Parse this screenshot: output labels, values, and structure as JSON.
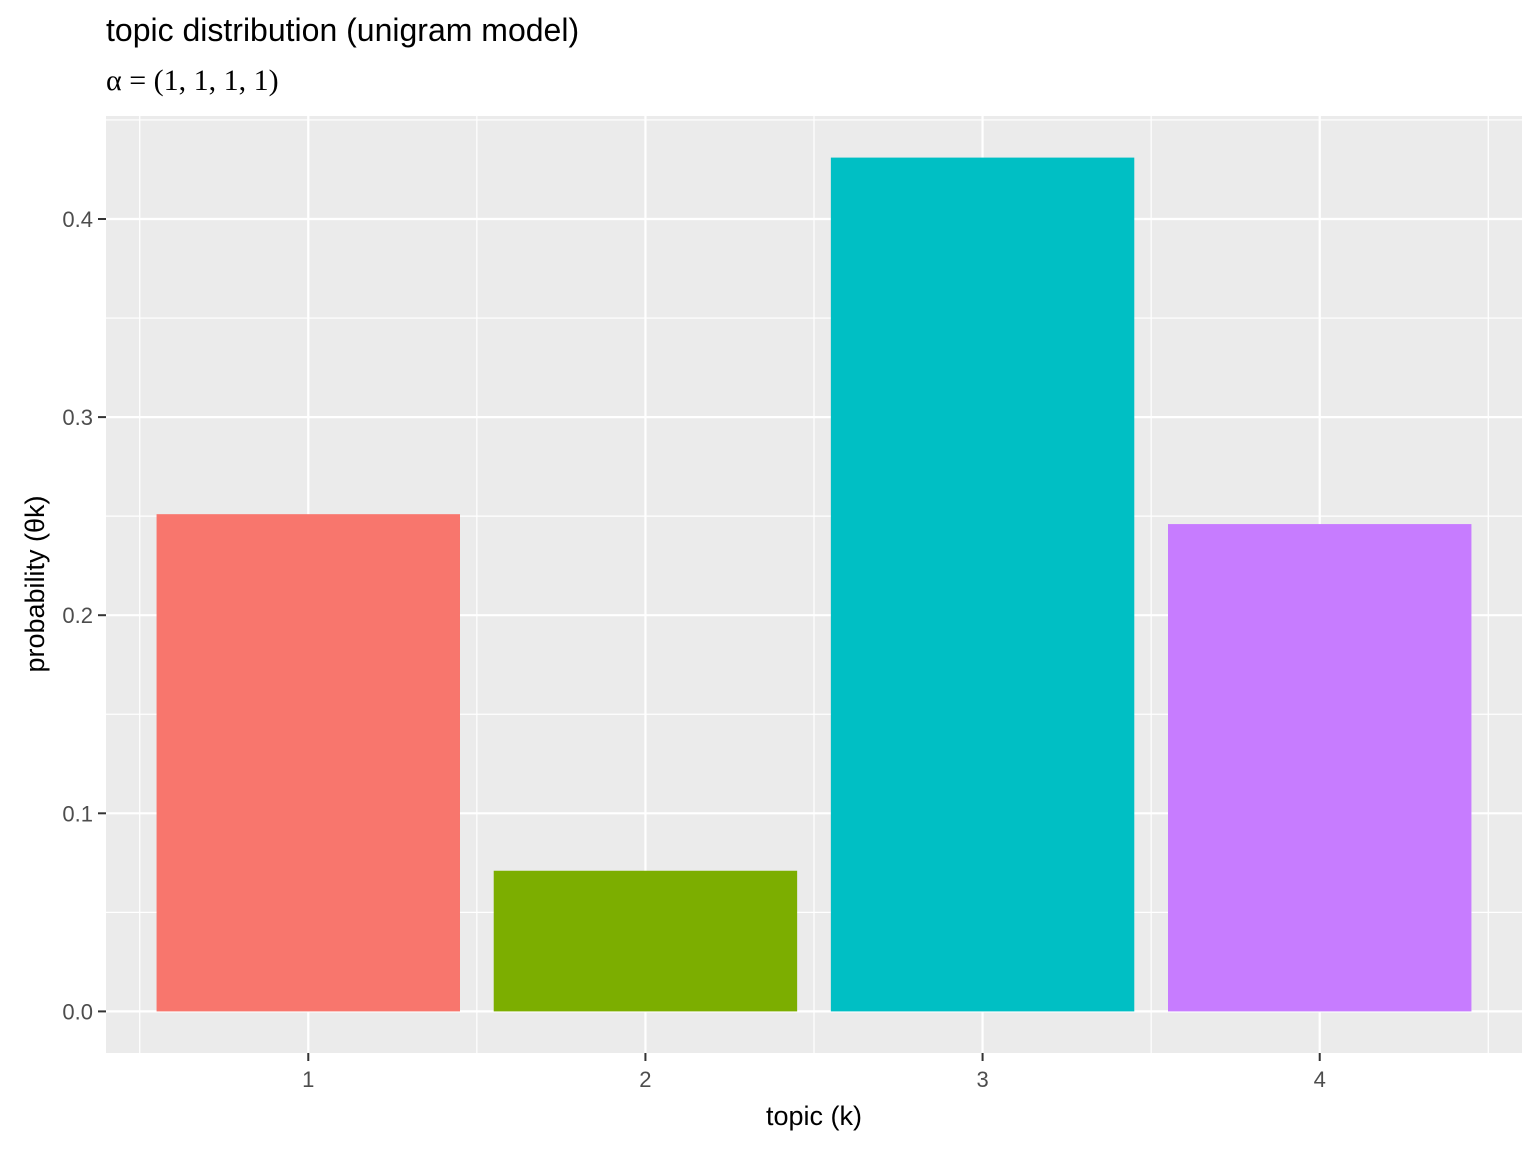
{
  "chart_data": {
    "type": "bar",
    "title": "topic distribution (unigram model)",
    "subtitle": "α = (1, 1, 1, 1)",
    "xlabel": "topic (k)",
    "ylabel": "probability (θk)",
    "categories": [
      "1",
      "2",
      "3",
      "4"
    ],
    "values": [
      0.251,
      0.071,
      0.431,
      0.246
    ],
    "ylim": [
      -0.021,
      0.452
    ],
    "yticks": [
      0.0,
      0.1,
      0.2,
      0.3,
      0.4
    ],
    "ytick_labels": [
      "0.0",
      "0.1",
      "0.2",
      "0.3",
      "0.4"
    ],
    "colors": [
      "#F8766D",
      "#7CAE00",
      "#00BFC4",
      "#C77CFF"
    ],
    "panel_background": "#EBEBEB",
    "grid": true,
    "grid_color": "#FFFFFF",
    "legend": "none"
  }
}
